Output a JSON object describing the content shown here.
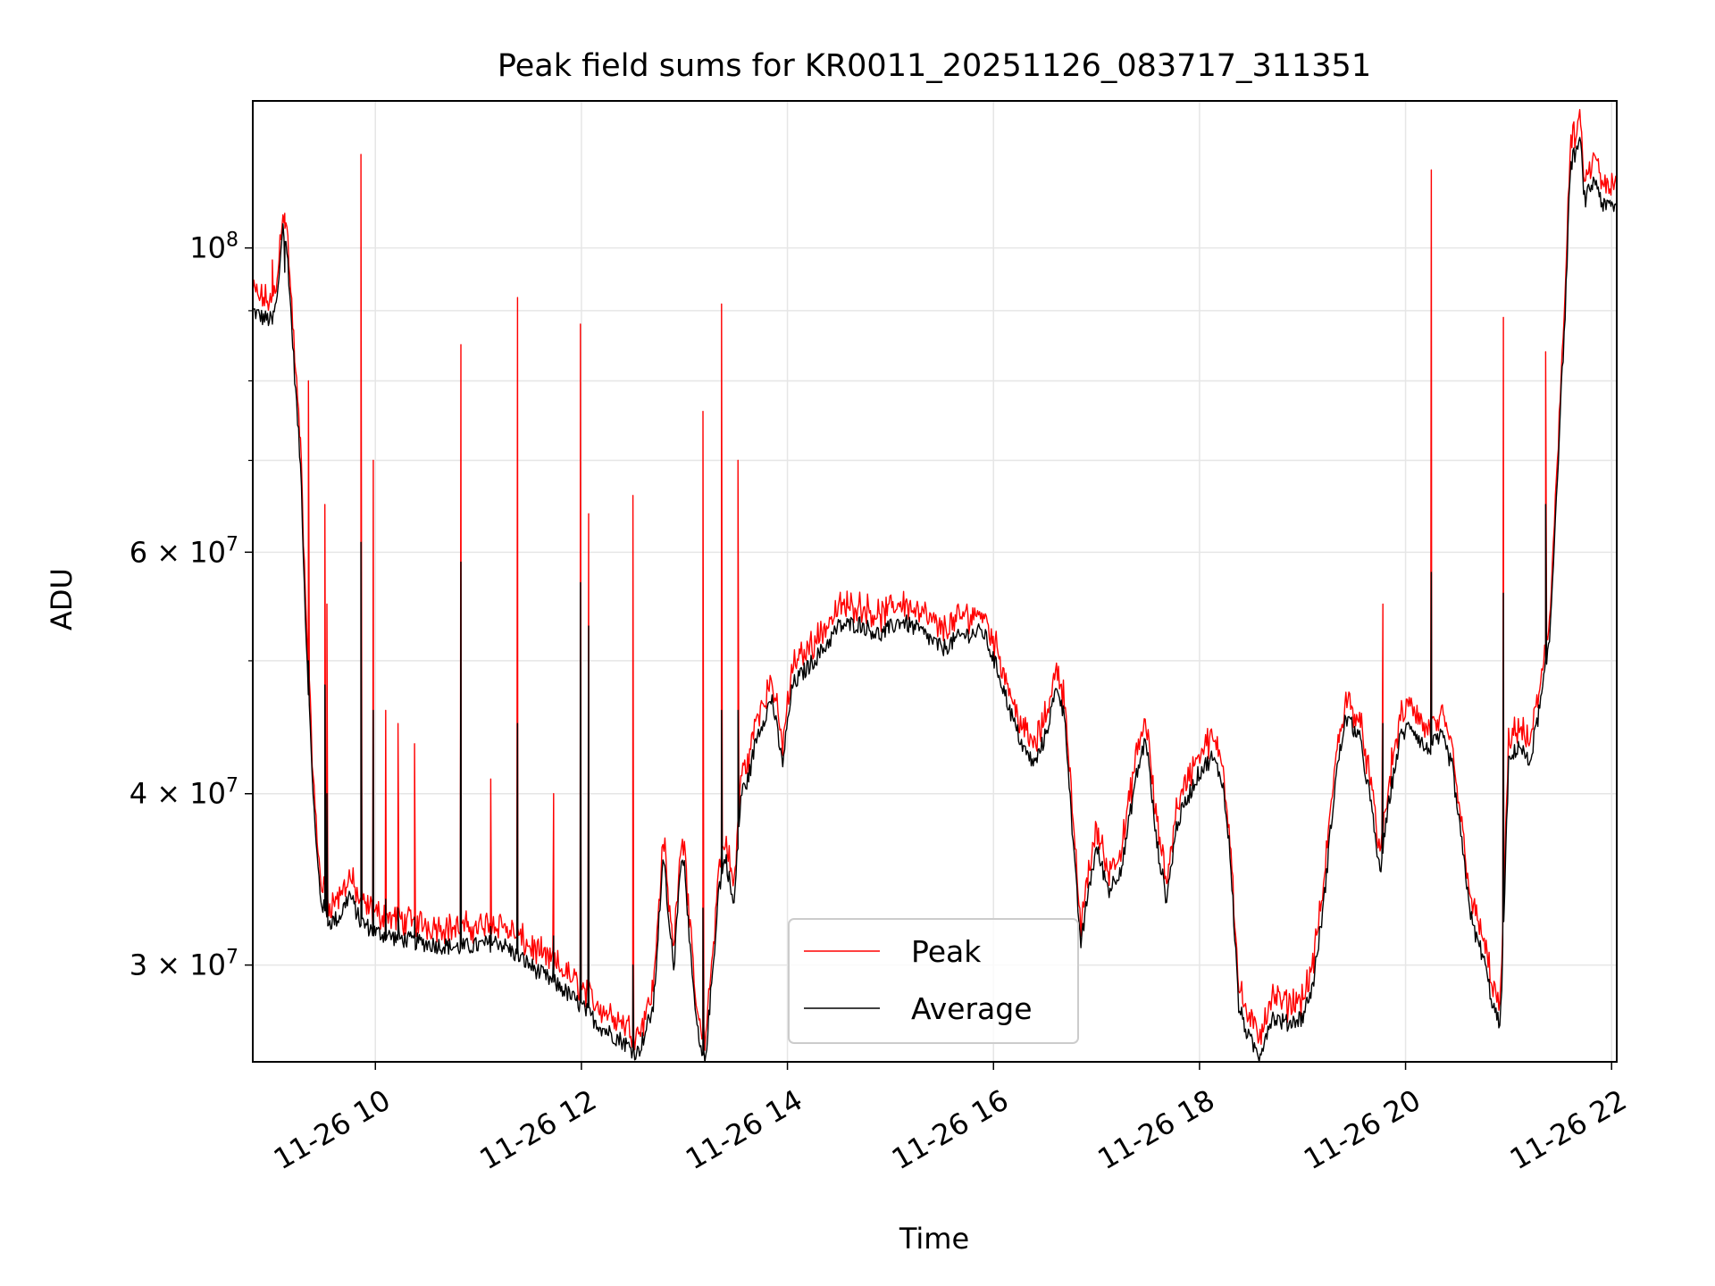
{
  "chart_data": {
    "type": "line",
    "title": "Peak field sums for KR0011_20251126_083717_311351",
    "xlabel": "Time",
    "ylabel": "ADU",
    "y_scale": "log",
    "ylim": [
      25500000,
      128000000
    ],
    "x_unit": "hours since 11-26 00:00",
    "xlim": [
      8.81,
      22.05
    ],
    "x_ticks": [
      {
        "value": 10,
        "label": "11-26 10"
      },
      {
        "value": 12,
        "label": "11-26 12"
      },
      {
        "value": 14,
        "label": "11-26 14"
      },
      {
        "value": 16,
        "label": "11-26 16"
      },
      {
        "value": 18,
        "label": "11-26 18"
      },
      {
        "value": 20,
        "label": "11-26 20"
      },
      {
        "value": 22,
        "label": "11-26 22"
      }
    ],
    "y_major_ticks": [
      {
        "value": 30000000,
        "mantissa": "3",
        "exponent": "7"
      },
      {
        "value": 40000000,
        "mantissa": "4",
        "exponent": "7"
      },
      {
        "value": 60000000,
        "mantissa": "6",
        "exponent": "7"
      },
      {
        "value": 100000000,
        "mantissa": "",
        "exponent": "8"
      }
    ],
    "y_minor_ticks": [
      50000000,
      70000000,
      80000000,
      90000000
    ],
    "tick_base": "10",
    "times_sign": "×",
    "grid": true,
    "legend_position": "lower center",
    "series": [
      {
        "name": "Peak",
        "color": "#ff0000",
        "role": "peak"
      },
      {
        "name": "Average",
        "color": "#000000",
        "role": "average"
      }
    ],
    "average_profile": [
      [
        8.81,
        90000000
      ],
      [
        8.9,
        89000000
      ],
      [
        9.0,
        88500000
      ],
      [
        9.05,
        92000000
      ],
      [
        9.1,
        104000000
      ],
      [
        9.15,
        98000000
      ],
      [
        9.22,
        80000000
      ],
      [
        9.28,
        68000000
      ],
      [
        9.32,
        54000000
      ],
      [
        9.37,
        44000000
      ],
      [
        9.42,
        37000000
      ],
      [
        9.47,
        33500000
      ],
      [
        9.55,
        32200000
      ],
      [
        9.65,
        32500000
      ],
      [
        9.75,
        33800000
      ],
      [
        9.85,
        32300000
      ],
      [
        10.0,
        31700000
      ],
      [
        10.2,
        31400000
      ],
      [
        10.5,
        31100000
      ],
      [
        10.8,
        30900000
      ],
      [
        11.0,
        31000000
      ],
      [
        11.2,
        31200000
      ],
      [
        11.4,
        30400000
      ],
      [
        11.6,
        29600000
      ],
      [
        11.8,
        28900000
      ],
      [
        12.0,
        28000000
      ],
      [
        12.2,
        27000000
      ],
      [
        12.4,
        26400000
      ],
      [
        12.5,
        26000000
      ],
      [
        12.55,
        25900000
      ],
      [
        12.62,
        26800000
      ],
      [
        12.7,
        28000000
      ],
      [
        12.76,
        33000000
      ],
      [
        12.8,
        36000000
      ],
      [
        12.85,
        32000000
      ],
      [
        12.9,
        30000000
      ],
      [
        12.95,
        35000000
      ],
      [
        13.0,
        36000000
      ],
      [
        13.05,
        31000000
      ],
      [
        13.1,
        28000000
      ],
      [
        13.15,
        26000000
      ],
      [
        13.2,
        25500000
      ],
      [
        13.28,
        30000000
      ],
      [
        13.33,
        34000000
      ],
      [
        13.4,
        36000000
      ],
      [
        13.48,
        33000000
      ],
      [
        13.55,
        40000000
      ],
      [
        13.62,
        41000000
      ],
      [
        13.7,
        44000000
      ],
      [
        13.85,
        47000000
      ],
      [
        13.95,
        42000000
      ],
      [
        14.05,
        48000000
      ],
      [
        14.2,
        49500000
      ],
      [
        14.35,
        51000000
      ],
      [
        14.5,
        53000000
      ],
      [
        14.7,
        53200000
      ],
      [
        14.9,
        52200000
      ],
      [
        15.1,
        53500000
      ],
      [
        15.3,
        52500000
      ],
      [
        15.5,
        51000000
      ],
      [
        15.7,
        52200000
      ],
      [
        15.9,
        52500000
      ],
      [
        16.05,
        49000000
      ],
      [
        16.2,
        45000000
      ],
      [
        16.3,
        43000000
      ],
      [
        16.4,
        42000000
      ],
      [
        16.5,
        44000000
      ],
      [
        16.62,
        48000000
      ],
      [
        16.7,
        45000000
      ],
      [
        16.78,
        36000000
      ],
      [
        16.85,
        31000000
      ],
      [
        16.92,
        34000000
      ],
      [
        17.0,
        36500000
      ],
      [
        17.12,
        34000000
      ],
      [
        17.25,
        35500000
      ],
      [
        17.38,
        41000000
      ],
      [
        17.48,
        44000000
      ],
      [
        17.58,
        37000000
      ],
      [
        17.68,
        33500000
      ],
      [
        17.78,
        38000000
      ],
      [
        17.9,
        40000000
      ],
      [
        18.0,
        41500000
      ],
      [
        18.12,
        42500000
      ],
      [
        18.22,
        41000000
      ],
      [
        18.3,
        36000000
      ],
      [
        18.38,
        28000000
      ],
      [
        18.48,
        26500000
      ],
      [
        18.58,
        25800000
      ],
      [
        18.7,
        27500000
      ],
      [
        18.85,
        27200000
      ],
      [
        19.0,
        27500000
      ],
      [
        19.1,
        29000000
      ],
      [
        19.2,
        33000000
      ],
      [
        19.32,
        41000000
      ],
      [
        19.42,
        45500000
      ],
      [
        19.55,
        44000000
      ],
      [
        19.65,
        40000000
      ],
      [
        19.75,
        35000000
      ],
      [
        19.85,
        40000000
      ],
      [
        19.95,
        44000000
      ],
      [
        20.05,
        45000000
      ],
      [
        20.2,
        43000000
      ],
      [
        20.35,
        44000000
      ],
      [
        20.45,
        42000000
      ],
      [
        20.55,
        36500000
      ],
      [
        20.65,
        32000000
      ],
      [
        20.75,
        30500000
      ],
      [
        20.85,
        28000000
      ],
      [
        20.92,
        27000000
      ],
      [
        21.0,
        42000000
      ],
      [
        21.1,
        43500000
      ],
      [
        21.2,
        42000000
      ],
      [
        21.32,
        47000000
      ],
      [
        21.4,
        52000000
      ],
      [
        21.48,
        70000000
      ],
      [
        21.55,
        90000000
      ],
      [
        21.6,
        115000000
      ],
      [
        21.66,
        118000000
      ],
      [
        21.7,
        119000000
      ],
      [
        21.74,
        108000000
      ],
      [
        21.8,
        111000000
      ],
      [
        21.85,
        112000000
      ],
      [
        21.92,
        107000000
      ],
      [
        22.0,
        107500000
      ],
      [
        22.05,
        107000000
      ]
    ],
    "peak_spikes": [
      {
        "x": 9.0,
        "peak": 98000000,
        "average": 88000000
      },
      {
        "x": 9.12,
        "peak": 106000000,
        "average": 96000000
      },
      {
        "x": 9.35,
        "peak": 80000000,
        "average": 50000000
      },
      {
        "x": 9.51,
        "peak": 65000000,
        "average": 48000000
      },
      {
        "x": 9.53,
        "peak": 55000000,
        "average": 40000000
      },
      {
        "x": 9.86,
        "peak": 117000000,
        "average": 61000000
      },
      {
        "x": 9.98,
        "peak": 70000000,
        "average": 46000000
      },
      {
        "x": 10.1,
        "peak": 46000000,
        "average": 33500000
      },
      {
        "x": 10.22,
        "peak": 45000000,
        "average": 33000000
      },
      {
        "x": 10.38,
        "peak": 43500000,
        "average": 32500000
      },
      {
        "x": 10.83,
        "peak": 85000000,
        "average": 59000000
      },
      {
        "x": 11.12,
        "peak": 41000000,
        "average": 32000000
      },
      {
        "x": 11.38,
        "peak": 92000000,
        "average": 45000000
      },
      {
        "x": 11.73,
        "peak": 40000000,
        "average": 31500000
      },
      {
        "x": 11.99,
        "peak": 88000000,
        "average": 57000000
      },
      {
        "x": 12.07,
        "peak": 64000000,
        "average": 53000000
      },
      {
        "x": 12.5,
        "peak": 66000000,
        "average": 30000000
      },
      {
        "x": 13.18,
        "peak": 76000000,
        "average": 33000000
      },
      {
        "x": 13.36,
        "peak": 91000000,
        "average": 46000000
      },
      {
        "x": 13.52,
        "peak": 70000000,
        "average": 46000000
      },
      {
        "x": 19.78,
        "peak": 55000000,
        "average": 45000000
      },
      {
        "x": 20.25,
        "peak": 114000000,
        "average": 58000000
      },
      {
        "x": 20.95,
        "peak": 89000000,
        "average": 56000000
      },
      {
        "x": 21.36,
        "peak": 84000000,
        "average": 65000000
      }
    ]
  },
  "legend": {
    "peak_label": "Peak",
    "average_label": "Average"
  }
}
